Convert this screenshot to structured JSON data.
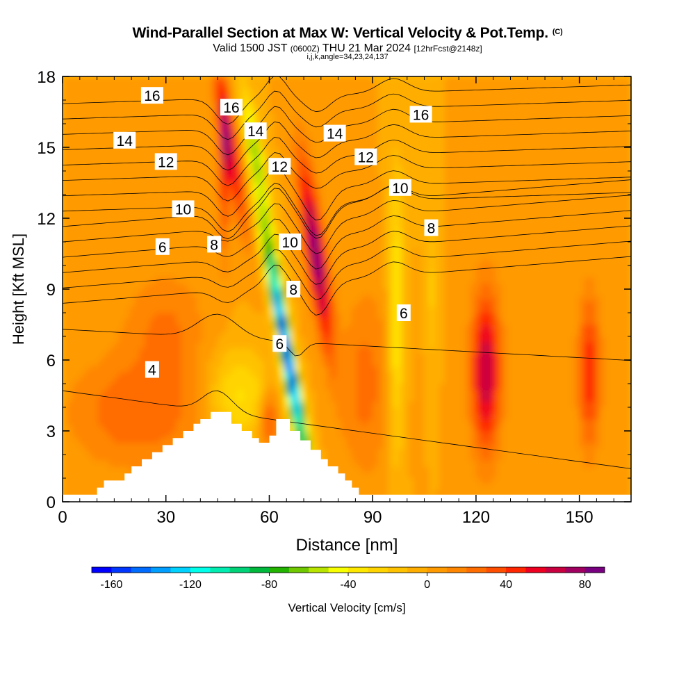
{
  "header": {
    "title": "Wind-Parallel Section at Max W: Vertical Velocity & Pot.Temp.",
    "copyright_mark": "(C)",
    "subtitle_main": "Valid 1500 JST",
    "subtitle_utc": "(0600Z)",
    "subtitle_date": "THU 21 Mar 2024",
    "subtitle_fcst": "[12hrFcst@2148z]",
    "section_indices": "i,j,k,angle=34,23,24,137"
  },
  "chart_data": {
    "type": "heatmap",
    "title": "Wind-Parallel Section at Max W: Vertical Velocity & Pot.Temp.",
    "xlabel": "Distance [nm]",
    "ylabel": "Height [Kft MSL]",
    "xlim": [
      0,
      165
    ],
    "ylim": [
      0,
      18
    ],
    "x_ticks": [
      0,
      30,
      60,
      90,
      120,
      150
    ],
    "y_ticks": [
      0,
      3,
      6,
      9,
      12,
      15,
      18
    ],
    "grid": false,
    "colorbar": {
      "label": "Vertical Velocity [cm/s]",
      "min": -170,
      "max": 90,
      "step": 10,
      "tick_values": [
        -160,
        -120,
        -80,
        -40,
        0,
        40,
        80
      ],
      "colors": [
        "#0000ff",
        "#0036ff",
        "#006cff",
        "#009eff",
        "#00d2ff",
        "#00ffea",
        "#00ecb0",
        "#00d278",
        "#00b83c",
        "#22b400",
        "#70c800",
        "#b8e400",
        "#f8ff00",
        "#ffe800",
        "#ffd400",
        "#ffc200",
        "#ffae00",
        "#ff9a00",
        "#ff8600",
        "#ff6c00",
        "#ff4e00",
        "#ff2600",
        "#ee0020",
        "#c80040",
        "#a00060",
        "#780080"
      ]
    },
    "contour_labels": [
      {
        "text": "16",
        "x": 26,
        "y": 17.2
      },
      {
        "text": "16",
        "x": 49,
        "y": 16.7
      },
      {
        "text": "14",
        "x": 18,
        "y": 15.3
      },
      {
        "text": "14",
        "x": 56,
        "y": 15.7
      },
      {
        "text": "14",
        "x": 79,
        "y": 15.6
      },
      {
        "text": "16",
        "x": 104,
        "y": 16.4
      },
      {
        "text": "12",
        "x": 30,
        "y": 14.4
      },
      {
        "text": "12",
        "x": 63,
        "y": 14.2
      },
      {
        "text": "12",
        "x": 88,
        "y": 14.6
      },
      {
        "text": "10",
        "x": 35,
        "y": 12.4
      },
      {
        "text": "10",
        "x": 66,
        "y": 11.0
      },
      {
        "text": "10",
        "x": 98,
        "y": 13.3
      },
      {
        "text": "8",
        "x": 44,
        "y": 10.9
      },
      {
        "text": "8",
        "x": 67,
        "y": 9.0
      },
      {
        "text": "8",
        "x": 107,
        "y": 11.6
      },
      {
        "text": "6",
        "x": 29,
        "y": 10.8
      },
      {
        "text": "6",
        "x": 63,
        "y": 6.7
      },
      {
        "text": "6",
        "x": 99,
        "y": 8.0
      },
      {
        "text": "4",
        "x": 26,
        "y": 5.6
      }
    ],
    "velocity_features": [
      {
        "name": "downdraft core",
        "x": 68,
        "y": 7.0,
        "value": -150
      },
      {
        "name": "updraft core",
        "x": 75,
        "y": 10.5,
        "value": 80
      },
      {
        "name": "updraft column",
        "x": 123,
        "y": 5.5,
        "value": 70
      },
      {
        "name": "updraft column",
        "x": 153,
        "y": 5.5,
        "value": 50
      }
    ]
  }
}
